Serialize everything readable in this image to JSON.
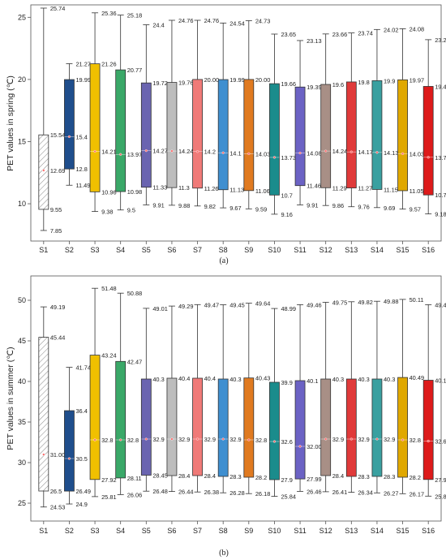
{
  "chart_data": [
    {
      "type": "box",
      "caption": "(a)",
      "ylabel": "PET values in spring (℃)",
      "ylim": [
        7,
        26
      ],
      "yticks": [
        10,
        15,
        20,
        25
      ],
      "categories": [
        "S1",
        "S2",
        "S3",
        "S4",
        "S5",
        "S6",
        "S7",
        "S8",
        "S9",
        "S10",
        "S11",
        "S12",
        "S13",
        "S14",
        "S15",
        "S16"
      ],
      "colors": [
        "hatched",
        "#1f4e8c",
        "#f0c000",
        "#3aa868",
        "#6a64b0",
        "#bdbdbd",
        "#f07a78",
        "#3f8fd0",
        "#e07a20",
        "#1a8c8c",
        "#6b62c4",
        "#a88f86",
        "#e03a3a",
        "#3aa0a0",
        "#e0a800",
        "#dd1a1a"
      ],
      "boxes": [
        {
          "max": 25.74,
          "q3": 15.54,
          "median": 12.69,
          "q1": 9.55,
          "min": 7.85
        },
        {
          "max": 21.27,
          "q3": 19.99,
          "median": 15.4,
          "q1": 12.8,
          "min": 11.49
        },
        {
          "max": 25.36,
          "q3": 21.26,
          "median": 14.21,
          "q1": 10.96,
          "min": 9.38
        },
        {
          "max": 25.18,
          "q3": 20.77,
          "median": 13.97,
          "q1": 10.98,
          "min": 9.5
        },
        {
          "max": 24.4,
          "q3": 19.72,
          "median": 14.27,
          "q1": 11.33,
          "min": 9.91
        },
        {
          "max": 24.76,
          "q3": 19.76,
          "median": 14.24,
          "q1": 11.3,
          "min": 9.88
        },
        {
          "max": 24.76,
          "q3": 20.0,
          "median": 14.2,
          "q1": 11.26,
          "min": 9.82
        },
        {
          "max": 24.54,
          "q3": 19.99,
          "median": 14.1,
          "q1": 11.13,
          "min": 9.67
        },
        {
          "max": 24.73,
          "q3": 20.0,
          "median": 14.03,
          "q1": 11.06,
          "min": 9.59
        },
        {
          "max": 23.65,
          "q3": 19.66,
          "median": 13.73,
          "q1": 10.7,
          "min": 9.16
        },
        {
          "max": 23.13,
          "q3": 19.39,
          "median": 14.08,
          "q1": 11.46,
          "min": 9.91
        },
        {
          "max": 23.66,
          "q3": 19.6,
          "median": 14.24,
          "q1": 11.29,
          "min": 9.86
        },
        {
          "max": 23.74,
          "q3": 19.8,
          "median": 14.17,
          "q1": 11.27,
          "min": 9.76
        },
        {
          "max": 24.02,
          "q3": 19.9,
          "median": 14.13,
          "q1": 11.15,
          "min": 9.69
        },
        {
          "max": 24.08,
          "q3": 19.97,
          "median": 14.03,
          "q1": 11.05,
          "min": 9.57
        },
        {
          "max": 23.2,
          "q3": 19.44,
          "median": 13.74,
          "q1": 10.71,
          "min": 9.18
        }
      ]
    },
    {
      "type": "box",
      "caption": "(b)",
      "ylabel": "PET values in summer  (℃)",
      "ylim": [
        22.8,
        53
      ],
      "yticks": [
        25,
        30,
        35,
        40,
        45,
        50
      ],
      "categories": [
        "S1",
        "S2",
        "S3",
        "S4",
        "S5",
        "S6",
        "S7",
        "S8",
        "S9",
        "S10",
        "S11",
        "S12",
        "S13",
        "S14",
        "S15",
        "S16"
      ],
      "colors": [
        "hatched",
        "#1f4e8c",
        "#f0c000",
        "#3aa868",
        "#6a64b0",
        "#bdbdbd",
        "#f07a78",
        "#3f8fd0",
        "#e07a20",
        "#1a8c8c",
        "#6b62c4",
        "#a88f86",
        "#e03a3a",
        "#3aa0a0",
        "#e0a800",
        "#dd1a1a"
      ],
      "boxes": [
        {
          "max": 49.19,
          "q3": 45.44,
          "median": 31.0,
          "q1": 26.5,
          "min": 24.53
        },
        {
          "max": 41.74,
          "q3": 36.4,
          "median": 30.5,
          "q1": 26.49,
          "min": 24.9
        },
        {
          "max": 51.48,
          "q3": 43.24,
          "median": 32.8,
          "q1": 27.92,
          "min": 25.81
        },
        {
          "max": 50.88,
          "q3": 42.47,
          "median": 32.8,
          "q1": 28.11,
          "min": 26.06
        },
        {
          "max": 49.01,
          "q3": 40.3,
          "median": 32.9,
          "q1": 28.45,
          "min": 26.48
        },
        {
          "max": 49.29,
          "q3": 40.4,
          "median": 32.9,
          "q1": 28.4,
          "min": 26.44
        },
        {
          "max": 49.47,
          "q3": 40.4,
          "median": 32.9,
          "q1": 28.4,
          "min": 26.38
        },
        {
          "max": 49.45,
          "q3": 40.3,
          "median": 32.9,
          "q1": 28.3,
          "min": 26.28
        },
        {
          "max": 49.64,
          "q3": 40.43,
          "median": 32.8,
          "q1": 28.2,
          "min": 26.18
        },
        {
          "max": 48.99,
          "q3": 39.9,
          "median": 32.6,
          "q1": 27.9,
          "min": 25.84
        },
        {
          "max": 49.46,
          "q3": 40.1,
          "median": 32.0,
          "q1": 27.99,
          "min": 26.46
        },
        {
          "max": 49.75,
          "q3": 40.3,
          "median": 32.9,
          "q1": 28.4,
          "min": 26.41
        },
        {
          "max": 49.82,
          "q3": 40.3,
          "median": 32.9,
          "q1": 28.3,
          "min": 26.34
        },
        {
          "max": 49.88,
          "q3": 40.3,
          "median": 32.9,
          "q1": 28.3,
          "min": 26.27
        },
        {
          "max": 50.11,
          "q3": 40.49,
          "median": 32.8,
          "q1": 28.2,
          "min": 26.17
        },
        {
          "max": 49.46,
          "q3": 40.15,
          "median": 32.65,
          "q1": 27.92,
          "min": 25.87
        }
      ]
    }
  ]
}
